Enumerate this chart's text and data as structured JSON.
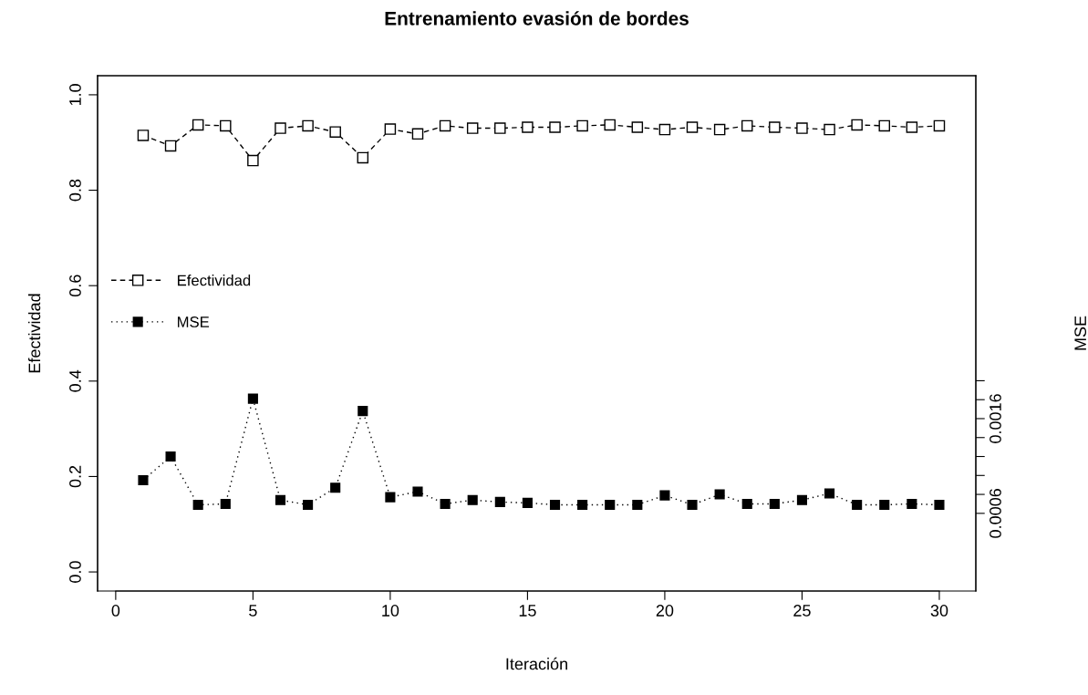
{
  "chart_data": {
    "type": "line",
    "title": "Entrenamiento evasión de bordes",
    "xlabel": "Iteración",
    "ylabel": "Efectividad",
    "y2label": "MSE",
    "x": [
      1,
      2,
      3,
      4,
      5,
      6,
      7,
      8,
      9,
      10,
      11,
      12,
      13,
      14,
      15,
      16,
      17,
      18,
      19,
      20,
      21,
      22,
      23,
      24,
      25,
      26,
      27,
      28,
      29,
      30
    ],
    "series": [
      {
        "name": "Efectividad",
        "color": "#000000",
        "marker": "square",
        "line_style": "dashed",
        "values": [
          0.915,
          0.893,
          0.937,
          0.935,
          0.862,
          0.93,
          0.935,
          0.922,
          0.868,
          0.928,
          0.918,
          0.935,
          0.93,
          0.93,
          0.932,
          0.932,
          0.935,
          0.937,
          0.932,
          0.927,
          0.932,
          0.927,
          0.935,
          0.932,
          0.93,
          0.927,
          0.937,
          0.935,
          0.932,
          0.935
        ]
      },
      {
        "name": "MSE",
        "color": "#000000",
        "marker": "square",
        "line_style": "dotted",
        "axis": "y2",
        "values": [
          0.00095,
          0.0012,
          0.00069,
          0.0007,
          0.00181,
          0.00074,
          0.00069,
          0.00087,
          0.00168,
          0.00077,
          0.00083,
          0.0007,
          0.00074,
          0.00072,
          0.00071,
          0.00069,
          0.00069,
          0.00069,
          0.00069,
          0.00079,
          0.00069,
          0.0008,
          0.0007,
          0.0007,
          0.00074,
          0.00081,
          0.00069,
          0.00069,
          0.0007,
          0.00069
        ]
      }
    ],
    "xlim": [
      -0.66,
      31.33
    ],
    "xticks": [
      0,
      5,
      10,
      15,
      20,
      25,
      30
    ],
    "ylim": [
      -0.04,
      1.04
    ],
    "yticks": [
      {
        "value": 0,
        "label": "0.0"
      },
      0.2,
      0.4,
      0.6,
      0.8,
      {
        "value": 1,
        "label": "1.0"
      }
    ],
    "y2lim": [
      -0.00022,
      0.00522
    ],
    "y2ticks": [
      0.0006,
      {
        "value": 0.0008,
        "label": null
      },
      {
        "value": 0.001,
        "label": null
      },
      {
        "value": 0.0012,
        "label": null
      },
      {
        "value": 0.0014,
        "label": null
      },
      0.0016,
      {
        "value": 0.0018,
        "label": null
      },
      {
        "value": 0.002,
        "label": null
      }
    ],
    "grid": false,
    "legend": "left"
  }
}
